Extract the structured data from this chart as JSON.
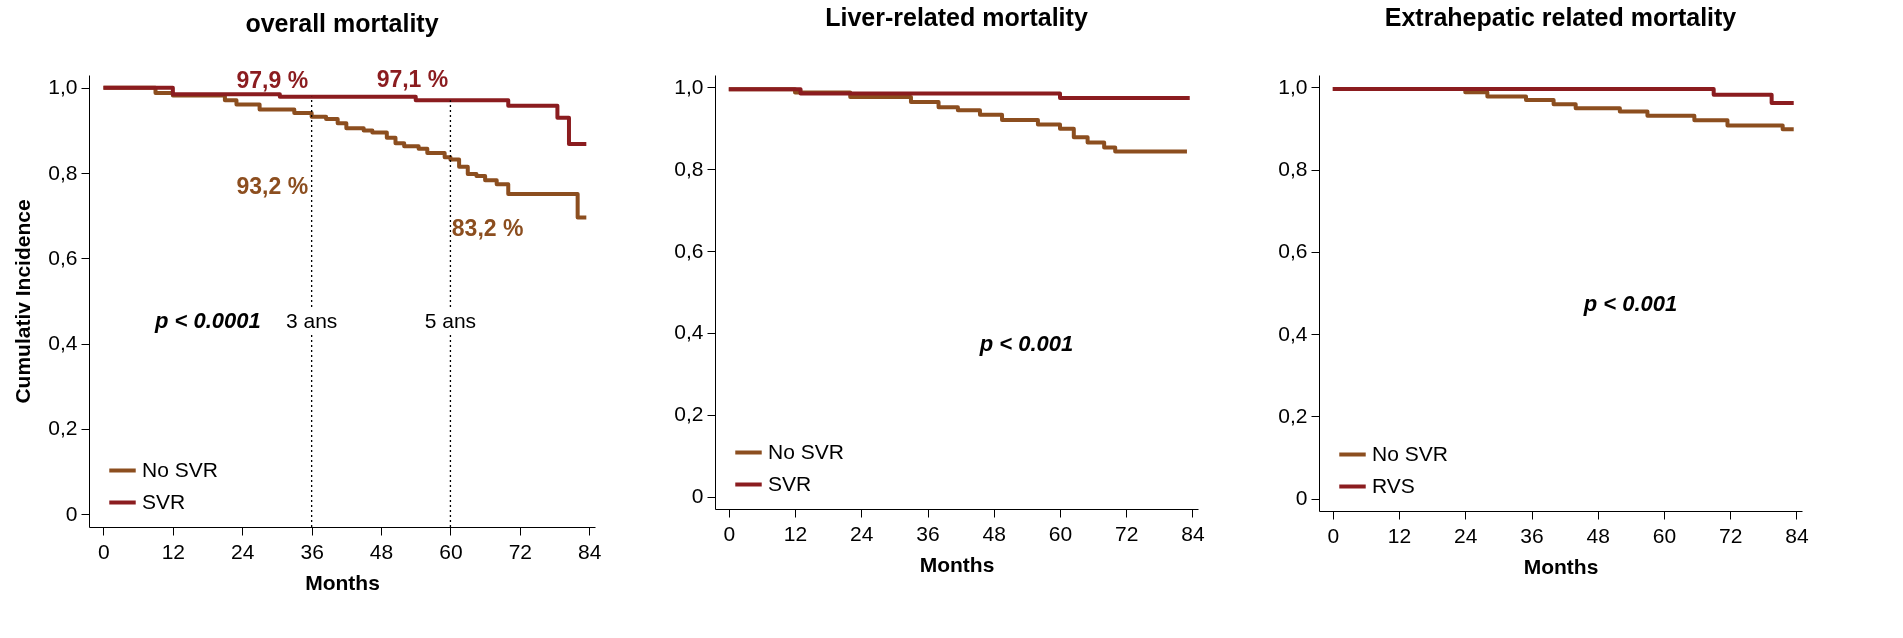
{
  "chart_data": [
    {
      "type": "step",
      "title": "overall mortality",
      "xlabel": "Months",
      "ylabel": "Cumulativ Incidence",
      "xlim": [
        -2.5,
        85
      ],
      "xticks": [
        0,
        12,
        24,
        36,
        48,
        60,
        72,
        84
      ],
      "ylim": [
        -0.03,
        1.03
      ],
      "yticks": [
        {
          "value": 0,
          "label": "0"
        },
        {
          "value": 0.2,
          "label": "0,2"
        },
        {
          "value": 0.4,
          "label": "0,4"
        },
        {
          "value": 0.6,
          "label": "0,6"
        },
        {
          "value": 0.8,
          "label": "0,8"
        },
        {
          "value": 1,
          "label": "1,0"
        }
      ],
      "grid": false,
      "legend": "bottom left",
      "line_style": "solid",
      "marker": "none",
      "series": [
        {
          "name": "No SVR",
          "color": "#8c4e1f",
          "x": [
            0,
            9,
            12,
            21,
            23,
            27,
            33,
            36,
            38.5,
            40.5,
            42,
            45,
            46.5,
            49,
            50.5,
            52,
            54.5,
            56,
            59,
            60,
            61.5,
            63,
            64.5,
            66,
            68,
            70,
            82,
            83.5
          ],
          "values": [
            1,
            0.988,
            0.982,
            0.971,
            0.961,
            0.949,
            0.941,
            0.932,
            0.927,
            0.917,
            0.905,
            0.9,
            0.895,
            0.883,
            0.87,
            0.863,
            0.857,
            0.847,
            0.837,
            0.832,
            0.815,
            0.798,
            0.793,
            0.783,
            0.774,
            0.751,
            0.696,
            0.696
          ]
        },
        {
          "name": "SVR",
          "color": "#8b1c1f",
          "x": [
            0,
            12,
            30.5,
            54,
            70,
            78.5,
            80.5,
            83.5
          ],
          "values": [
            1,
            0.985,
            0.979,
            0.971,
            0.958,
            0.93,
            0.868,
            0.868
          ]
        }
      ],
      "ref_lines": [
        {
          "axis": "x",
          "value": 36,
          "label": "3 ans",
          "line_style": "dotted"
        },
        {
          "axis": "x",
          "value": 60,
          "label": "5 ans",
          "line_style": "dotted"
        }
      ],
      "annotations": [
        "97,9 %",
        "93,2 %",
        "97,1 %",
        "83,2 %",
        "p < 0.0001"
      ]
    },
    {
      "type": "step",
      "title": "Liver-related mortality",
      "xlabel": "Months",
      "xlim": [
        -2.5,
        85
      ],
      "xticks": [
        0,
        12,
        24,
        36,
        48,
        60,
        72,
        84
      ],
      "ylim": [
        -0.03,
        1.03
      ],
      "yticks": [
        0,
        {
          "value": 0.2,
          "label": "0,2"
        },
        {
          "value": 0.4,
          "label": "0,4"
        },
        {
          "value": 0.6,
          "label": "0,6"
        },
        {
          "value": 0.8,
          "label": "0,8"
        },
        {
          "value": 1,
          "label": "1,0"
        }
      ],
      "grid": false,
      "legend": "bottom left",
      "line_style": "solid",
      "marker": "none",
      "series": [
        {
          "name": "No SVR",
          "color": "#8c4e1f",
          "x": [
            0,
            12,
            22,
            33,
            38,
            41.5,
            45.5,
            49.5,
            56,
            60,
            62.5,
            65,
            68,
            70,
            83
          ],
          "values": [
            0.995,
            0.987,
            0.976,
            0.964,
            0.951,
            0.944,
            0.933,
            0.92,
            0.909,
            0.899,
            0.878,
            0.865,
            0.853,
            0.843,
            0.843
          ]
        },
        {
          "name": "SVR",
          "color": "#8b1c1f",
          "x": [
            0,
            13,
            60,
            83.5
          ],
          "values": [
            0.995,
            0.985,
            0.974,
            0.974
          ]
        }
      ],
      "annotations": [
        "p < 0.001"
      ]
    },
    {
      "type": "step",
      "title": "Extrahepatic related mortality",
      "xlabel": "Months",
      "xlim": [
        -2.5,
        85
      ],
      "xticks": [
        0,
        12,
        24,
        36,
        48,
        60,
        72,
        84
      ],
      "ylim": [
        -0.03,
        1.03
      ],
      "yticks": [
        0,
        {
          "value": 0.2,
          "label": "0,2"
        },
        {
          "value": 0.4,
          "label": "0,4"
        },
        {
          "value": 0.6,
          "label": "0,6"
        },
        {
          "value": 0.8,
          "label": "0,8"
        },
        {
          "value": 1,
          "label": "1,0"
        }
      ],
      "grid": false,
      "legend": "bottom left",
      "line_style": "solid",
      "marker": "none",
      "series": [
        {
          "name": "No SVR",
          "color": "#8c4e1f",
          "x": [
            0,
            24,
            28,
            35,
            40,
            44,
            52,
            57,
            65.5,
            71.5,
            81.5,
            83.5
          ],
          "values": [
            0.996,
            0.988,
            0.978,
            0.969,
            0.959,
            0.949,
            0.941,
            0.931,
            0.92,
            0.907,
            0.898,
            0.898
          ]
        },
        {
          "name": "RVS",
          "color": "#8b1c1f",
          "x": [
            0,
            69,
            79.5,
            83.5
          ],
          "values": [
            0.996,
            0.982,
            0.962,
            0.962
          ]
        }
      ],
      "annotations": [
        "p < 0.001"
      ]
    }
  ]
}
